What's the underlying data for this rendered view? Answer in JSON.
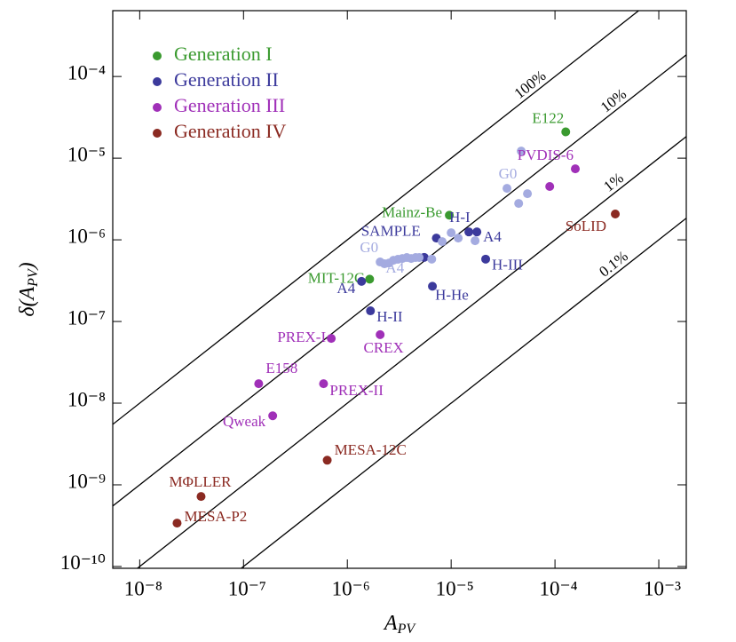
{
  "chart_data": {
    "type": "scatter",
    "xlabel_parts": [
      "A",
      "PV"
    ],
    "ylabel_parts": [
      "δ(A",
      "PV",
      ")"
    ],
    "xlog": true,
    "ylog": true,
    "xlim": [
      5.5e-09,
      0.00184
    ],
    "ylim": [
      9.5e-11,
      0.00064
    ],
    "xticks": [
      {
        "value": 1e-08,
        "label": "10⁻⁸"
      },
      {
        "value": 1e-07,
        "label": "10⁻⁷"
      },
      {
        "value": 1e-06,
        "label": "10⁻⁶"
      },
      {
        "value": 1e-05,
        "label": "10⁻⁵"
      },
      {
        "value": 0.0001,
        "label": "10⁻⁴"
      },
      {
        "value": 0.001,
        "label": "10⁻³"
      }
    ],
    "yticks": [
      {
        "value": 1e-10,
        "label": "10⁻¹⁰"
      },
      {
        "value": 1e-09,
        "label": "10⁻⁹"
      },
      {
        "value": 1e-08,
        "label": "10⁻⁸"
      },
      {
        "value": 1e-07,
        "label": "10⁻⁷"
      },
      {
        "value": 1e-06,
        "label": "10⁻⁶"
      },
      {
        "value": 1e-05,
        "label": "10⁻⁵"
      },
      {
        "value": 0.0001,
        "label": "10⁻⁴"
      }
    ],
    "legend": "upper left",
    "reference_lines": [
      {
        "value": 100,
        "label": "100%"
      },
      {
        "value": 10,
        "label": "10%"
      },
      {
        "value": 1,
        "label": "1%"
      },
      {
        "value": 0.1,
        "label": "0.1%"
      }
    ],
    "series": [
      {
        "name": "Generation I",
        "color": "#3a9a2f",
        "x": [
          0.000127,
          9.6e-06,
          1.64e-06
        ],
        "values": [
          2.1e-05,
          2e-06,
          3.3e-07
        ],
        "point_labels": [
          "E122",
          "Mainz-Be",
          "MIT-12C"
        ]
      },
      {
        "name": "Generation II",
        "color": "#3c3a9c",
        "x": [
          1.48e-05,
          1.77e-05,
          7.2e-06,
          5.5e-06,
          2.15e-05,
          6.6e-06,
          1.37e-06,
          1.67e-06
        ],
        "values": [
          1.25e-06,
          1.25e-06,
          1.05e-06,
          6.1e-07,
          5.8e-07,
          2.7e-07,
          3.1e-07,
          1.35e-07
        ],
        "point_labels": [
          "H-I",
          "A4",
          null,
          "SAMPLE",
          "H-III",
          "H-He",
          "A4",
          "H-II"
        ]
      },
      {
        "color": "#a4abe0",
        "x": [
          4.73e-05,
          3.45e-05,
          5.43e-05,
          4.47e-05,
          1e-05,
          1.17e-05,
          1.7e-05,
          8.2e-06,
          6.5e-06,
          2.07e-06,
          2.28e-06,
          2.52e-06,
          2.78e-06,
          3.07e-06,
          3.39e-06,
          3.74e-06,
          4.12e-06,
          4.55e-06,
          4.92e-06
        ],
        "values": [
          1.22e-05,
          4.27e-06,
          3.67e-06,
          2.79e-06,
          1.22e-06,
          1.05e-06,
          9.75e-07,
          9.5e-07,
          5.8e-07,
          5.35e-07,
          5.09e-07,
          5.2e-07,
          5.62e-07,
          5.77e-07,
          5.91e-07,
          6.07e-07,
          5.91e-07,
          6.07e-07,
          6.07e-07
        ],
        "point_labels": [
          null,
          "G0",
          null,
          null,
          null,
          null,
          null,
          null,
          null,
          "G0",
          null,
          null,
          null,
          null,
          null,
          "A4",
          null,
          null,
          null
        ]
      },
      {
        "name": "Generation III",
        "color": "#a030b8",
        "x": [
          0.000157,
          8.9e-05,
          7e-07,
          2.07e-06,
          1.4e-07,
          5.9e-07,
          1.91e-07
        ],
        "values": [
          7.4e-06,
          4.5e-06,
          6.2e-08,
          6.9e-08,
          1.73e-08,
          1.73e-08,
          7e-09
        ],
        "point_labels": [
          "PVDIS-6",
          null,
          "PREX-I",
          "CREX",
          "E158",
          "PREX-II",
          "Qweak"
        ]
      },
      {
        "name": "Generation IV",
        "color": "#8b2a22",
        "x": [
          0.000381,
          6.4e-07,
          3.9e-08,
          2.29e-08
        ],
        "values": [
          2.07e-06,
          2e-09,
          7.2e-10,
          3.4e-10
        ],
        "point_labels": [
          "SoLID",
          "MESA-12C",
          "MΦLLER",
          "MESA-P2"
        ]
      }
    ]
  }
}
